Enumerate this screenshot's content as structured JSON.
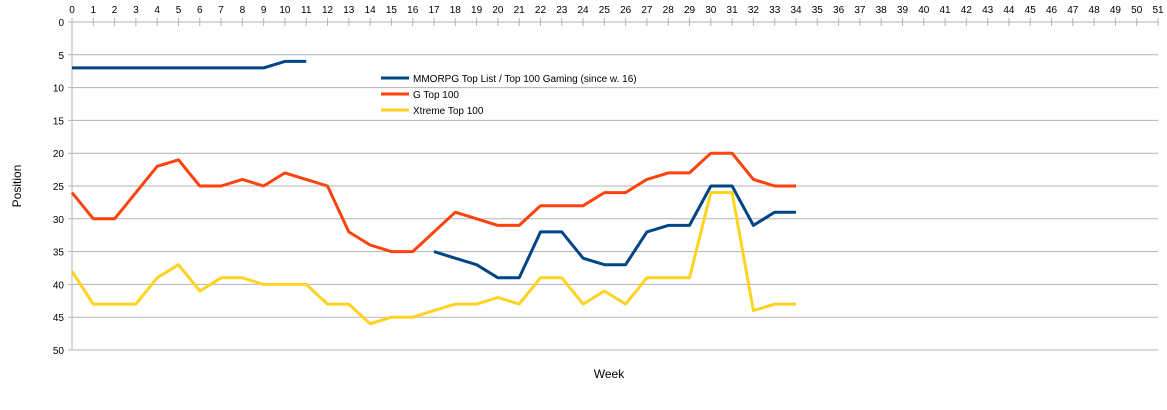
{
  "chart_data": {
    "type": "line",
    "xlabel": "Week",
    "ylabel": "Position",
    "xlim": [
      0,
      51
    ],
    "ylim": [
      0,
      50
    ],
    "y_inverted": true,
    "x_axis_position": "top",
    "x_ticks": [
      0,
      1,
      2,
      3,
      4,
      5,
      6,
      7,
      8,
      9,
      10,
      11,
      12,
      13,
      14,
      15,
      16,
      17,
      18,
      19,
      20,
      21,
      22,
      23,
      24,
      25,
      26,
      27,
      28,
      29,
      30,
      31,
      32,
      33,
      34,
      35,
      36,
      37,
      38,
      39,
      40,
      41,
      42,
      43,
      44,
      45,
      46,
      47,
      48,
      49,
      50,
      51
    ],
    "y_ticks": [
      0,
      5,
      10,
      15,
      20,
      25,
      30,
      35,
      40,
      45,
      50
    ],
    "grid": true,
    "legend_position": "top-center",
    "series": [
      {
        "name": "MMORPG Top List / Top 100 Gaming (since w. 16)",
        "color": "#004586",
        "segments": [
          {
            "x": [
              0,
              1,
              2,
              3,
              4,
              5,
              6,
              7,
              8,
              9,
              10,
              11
            ],
            "y": [
              7,
              7,
              7,
              7,
              7,
              7,
              7,
              7,
              7,
              7,
              6,
              6
            ]
          },
          {
            "x": [
              17,
              18,
              19,
              20,
              21,
              22,
              23,
              24,
              25,
              26,
              27,
              28,
              29,
              30,
              31,
              32,
              33,
              34
            ],
            "y": [
              35,
              36,
              37,
              39,
              39,
              32,
              32,
              36,
              37,
              37,
              32,
              31,
              31,
              25,
              25,
              31,
              29,
              29
            ]
          }
        ]
      },
      {
        "name": "G Top 100",
        "color": "#ff420e",
        "segments": [
          {
            "x": [
              0,
              1,
              2,
              3,
              4,
              5,
              6,
              7,
              8,
              9,
              10,
              11,
              12,
              13,
              14,
              15,
              16,
              17,
              18,
              19,
              20,
              21,
              22,
              23,
              24,
              25,
              26,
              27,
              28,
              29,
              30,
              31,
              32,
              33,
              34
            ],
            "y": [
              26,
              30,
              30,
              26,
              22,
              21,
              25,
              25,
              24,
              25,
              23,
              24,
              25,
              32,
              34,
              35,
              35,
              32,
              29,
              30,
              31,
              31,
              28,
              28,
              28,
              26,
              26,
              24,
              23,
              23,
              20,
              20,
              24,
              25,
              25
            ]
          }
        ]
      },
      {
        "name": "Xtreme Top 100",
        "color": "#ffd320",
        "segments": [
          {
            "x": [
              0,
              1,
              2,
              3,
              4,
              5,
              6,
              7,
              8,
              9,
              10,
              11,
              12,
              13,
              14,
              15,
              16,
              17,
              18,
              19,
              20,
              21,
              22,
              23,
              24,
              25,
              26,
              27,
              28,
              29,
              30,
              31,
              32,
              33,
              34
            ],
            "y": [
              38,
              43,
              43,
              43,
              39,
              37,
              41,
              39,
              39,
              40,
              40,
              40,
              43,
              43,
              46,
              45,
              45,
              44,
              43,
              43,
              42,
              43,
              39,
              39,
              43,
              41,
              43,
              39,
              39,
              39,
              26,
              26,
              44,
              43,
              43
            ]
          }
        ]
      }
    ]
  }
}
